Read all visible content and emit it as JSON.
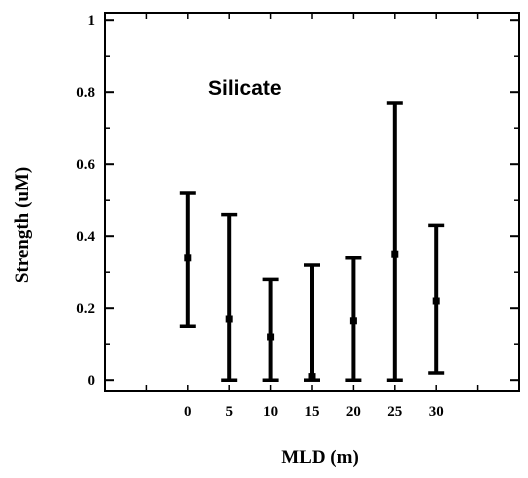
{
  "chart_data": {
    "type": "error-bar",
    "annotation": "Silicate",
    "xlabel": "MLD (m)",
    "ylabel": "Strength (uM)",
    "x_ticks": [
      "0",
      "5",
      "10",
      "15",
      "20",
      "25",
      "30"
    ],
    "y_ticks": [
      "0",
      "0.2",
      "0.4",
      "0.6",
      "0.8",
      "1"
    ],
    "xlim": [
      -10,
      40
    ],
    "ylim": [
      -0.03,
      1.02
    ],
    "grid": false,
    "points": [
      {
        "x": 0,
        "mean": 0.34,
        "low": 0.15,
        "high": 0.52
      },
      {
        "x": 5,
        "mean": 0.17,
        "low": 0.0,
        "high": 0.46
      },
      {
        "x": 10,
        "mean": 0.12,
        "low": 0.0,
        "high": 0.28
      },
      {
        "x": 15,
        "mean": 0.01,
        "low": 0.0,
        "high": 0.32
      },
      {
        "x": 20,
        "mean": 0.165,
        "low": 0.0,
        "high": 0.34
      },
      {
        "x": 25,
        "mean": 0.35,
        "low": 0.0,
        "high": 0.77
      },
      {
        "x": 30,
        "mean": 0.22,
        "low": 0.02,
        "high": 0.43
      }
    ]
  }
}
